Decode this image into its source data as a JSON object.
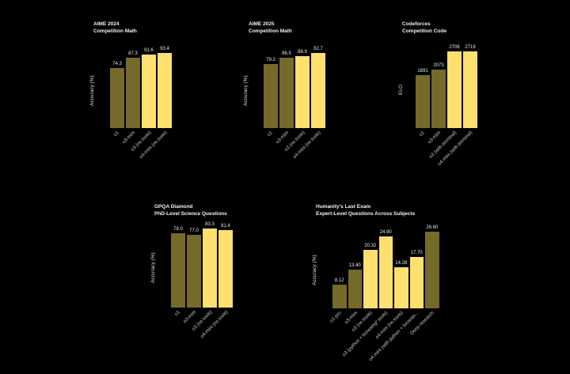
{
  "page": {
    "background": "#000000",
    "bar_color_dark": "#756a29",
    "bar_color_light": "#fde06e"
  },
  "chart_data": [
    {
      "type": "bar",
      "title": "AIME 2024",
      "subtitle": "Competition Math",
      "ylabel": "Accuracy (%)",
      "ylim": [
        0,
        100
      ],
      "grid": false,
      "legend": "none",
      "categories": [
        "o1",
        "o3-mini",
        "o3 (no tools)",
        "o4-mini (no tools)"
      ],
      "values": [
        74.3,
        87.3,
        91.6,
        93.4
      ],
      "value_labels": [
        "74.3",
        "87.3",
        "91.6",
        "93.4"
      ],
      "bar_colors": [
        "#756a29",
        "#756a29",
        "#fde06e",
        "#fde06e"
      ]
    },
    {
      "type": "bar",
      "title": "AIME 2025",
      "subtitle": "Competition Math",
      "ylabel": "Accuracy (%)",
      "ylim": [
        0,
        100
      ],
      "grid": false,
      "legend": "none",
      "categories": [
        "o1",
        "o3-mini",
        "o3 (no tools)",
        "o4-mini (no tools)"
      ],
      "values": [
        79.2,
        86.5,
        88.9,
        92.7
      ],
      "value_labels": [
        "79.2",
        "86.5",
        "88.9",
        "92.7"
      ],
      "bar_colors": [
        "#756a29",
        "#756a29",
        "#fde06e",
        "#fde06e"
      ]
    },
    {
      "type": "bar",
      "title": "Codeforces",
      "subtitle": "Competition Code",
      "ylabel": "ELO",
      "ylim": [
        0,
        2800
      ],
      "grid": false,
      "legend": "none",
      "categories": [
        "o1",
        "o3-mini",
        "o3 (with terminal)",
        "o4-mini (with terminal)"
      ],
      "values": [
        1891,
        2073,
        2706,
        2719
      ],
      "value_labels": [
        "1891",
        "2073",
        "2706",
        "2719"
      ],
      "bar_colors": [
        "#756a29",
        "#756a29",
        "#fde06e",
        "#fde06e"
      ]
    },
    {
      "type": "bar",
      "title": "GPQA Diamond",
      "subtitle": "PhD-Level Science Questions",
      "ylabel": "Accuracy (%)",
      "ylim": [
        0,
        100
      ],
      "grid": false,
      "legend": "none",
      "categories": [
        "o1",
        "o3-mini",
        "o3 (no tools)",
        "o4-mini (no tools)"
      ],
      "values": [
        78.0,
        77.0,
        83.3,
        81.4
      ],
      "value_labels": [
        "78.0",
        "77.0",
        "83.3",
        "81.4"
      ],
      "bar_colors": [
        "#756a29",
        "#756a29",
        "#fde06e",
        "#fde06e"
      ]
    },
    {
      "type": "bar",
      "title": "Humanity's Last Exam",
      "subtitle": "Expert-Level Questions Across Subjects",
      "ylabel": "Accuracy (%)",
      "ylim": [
        0,
        30
      ],
      "grid": false,
      "legend": "none",
      "categories": [
        "o1-pro",
        "o3-mini",
        "o3 (no tools)",
        "o3 (python + browsing* tools)",
        "o4-mini (no tools)",
        "o4-mini (with python + browsin...",
        "Deep research"
      ],
      "values": [
        8.12,
        13.4,
        20.32,
        24.9,
        14.28,
        17.7,
        26.6
      ],
      "value_labels": [
        "8.12",
        "13.40",
        "20.32",
        "24.90",
        "14.28",
        "17.70",
        "26.60"
      ],
      "bar_colors": [
        "#756a29",
        "#756a29",
        "#fde06e",
        "#fde06e",
        "#fde06e",
        "#fde06e",
        "#756a29"
      ]
    }
  ]
}
